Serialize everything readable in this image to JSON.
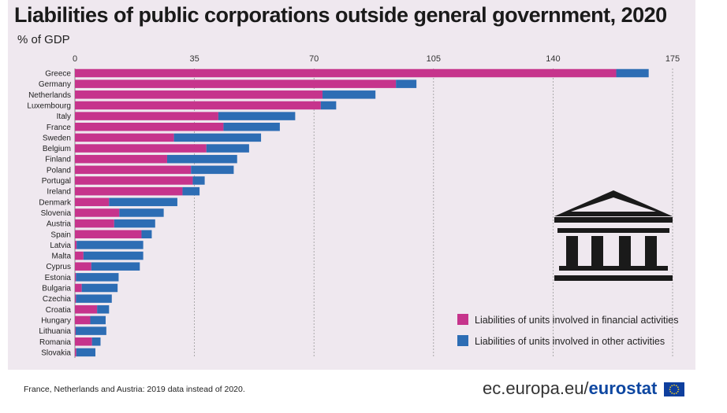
{
  "header": {
    "title": "Liabilities of public corporations outside general government, 2020",
    "subtitle": "% of GDP"
  },
  "footer": {
    "note": "France, Netherlands and Austria: 2019 data instead of 2020.",
    "brand_prefix": "ec.europa.eu/",
    "brand_name": "eurostat",
    "flag_icon": "eu-flag-icon"
  },
  "colors": {
    "financial": "#c6348c",
    "other": "#2d6db4",
    "grid": "#9a9a9a",
    "icon": "#1a1a1a"
  },
  "chart_data": {
    "type": "bar",
    "orientation": "horizontal",
    "stacked": true,
    "title": "Liabilities of public corporations outside general government, 2020",
    "xlabel": "% of GDP",
    "xlim": [
      0,
      175
    ],
    "xticks": [
      0,
      35,
      70,
      105,
      140,
      175
    ],
    "grid": "vertical dashed",
    "legend_position": "bottom-right",
    "categories": [
      "Greece",
      "Germany",
      "Netherlands",
      "Luxembourg",
      "Italy",
      "France",
      "Sweden",
      "Belgium",
      "Finland",
      "Poland",
      "Portugal",
      "Ireland",
      "Denmark",
      "Slovenia",
      "Austria",
      "Spain",
      "Latvia",
      "Malta",
      "Cyprus",
      "Estonia",
      "Bulgaria",
      "Czechia",
      "Croatia",
      "Hungary",
      "Lithuania",
      "Romania",
      "Slovakia"
    ],
    "series": [
      {
        "name": "Liabilities of units involved in financial activities",
        "values": [
          158.5,
          94,
          72.5,
          72,
          42,
          43.5,
          29,
          38.5,
          27,
          34,
          34.5,
          31.5,
          10,
          13,
          11.5,
          19.5,
          0.5,
          2.5,
          4.8,
          0.3,
          2,
          0.3,
          6.5,
          4.5,
          0.2,
          5,
          0.4
        ]
      },
      {
        "name": "Liabilities of units involved in other activities",
        "values": [
          9.5,
          6,
          15.5,
          4.5,
          22.5,
          16.5,
          25.5,
          12.5,
          20.5,
          12.5,
          3.5,
          5,
          20,
          13,
          12,
          3,
          19.5,
          17.5,
          14.2,
          12.5,
          10.5,
          10.5,
          3.5,
          4.5,
          9,
          2.5,
          5.6
        ]
      }
    ]
  }
}
